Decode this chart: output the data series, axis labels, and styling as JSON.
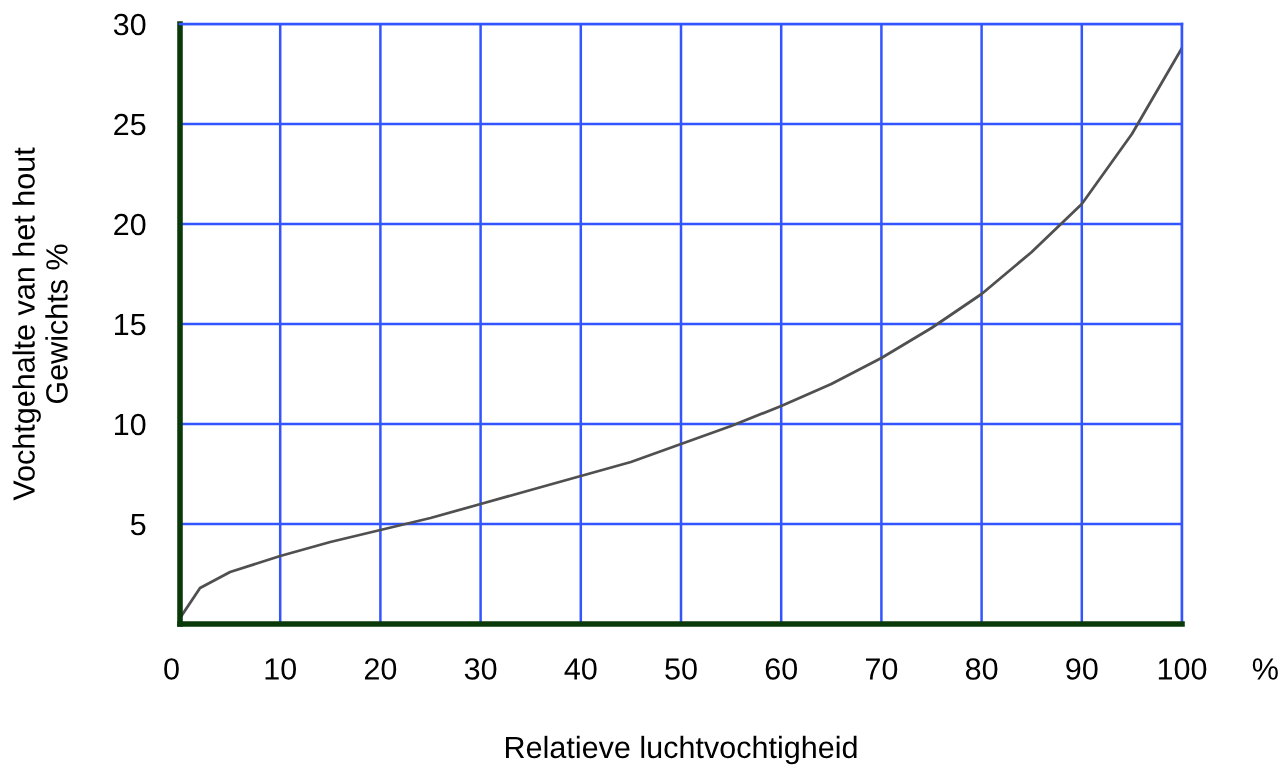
{
  "chart_data": {
    "type": "line",
    "xlabel": "Relatieve luchtvochtigheid",
    "ylabel": "Vochtgehalte van het hout\nGewichts %",
    "x": [
      0,
      2,
      5,
      10,
      15,
      20,
      25,
      30,
      35,
      40,
      45,
      50,
      55,
      60,
      65,
      70,
      75,
      80,
      85,
      90,
      95,
      100
    ],
    "series": [
      {
        "color": "#505050",
        "values": [
          0.3,
          1.8,
          2.6,
          3.4,
          4.1,
          4.7,
          5.3,
          6.0,
          6.7,
          7.4,
          8.1,
          9.0,
          9.9,
          10.9,
          12.0,
          13.3,
          14.8,
          16.5,
          18.6,
          21.0,
          24.5,
          28.8
        ]
      }
    ],
    "xlim": [
      0,
      100
    ],
    "ylim": [
      0,
      30
    ],
    "xticks": [
      {
        "value": 0,
        "label": "0"
      },
      10,
      20,
      30,
      40,
      50,
      60,
      70,
      80,
      90,
      100
    ],
    "yticks": [
      {
        "value": 0,
        "label": null
      },
      5,
      10,
      15,
      20,
      25,
      30
    ],
    "annotations": [
      "%"
    ],
    "grid": true,
    "marker": "none",
    "line_style": "solid"
  }
}
